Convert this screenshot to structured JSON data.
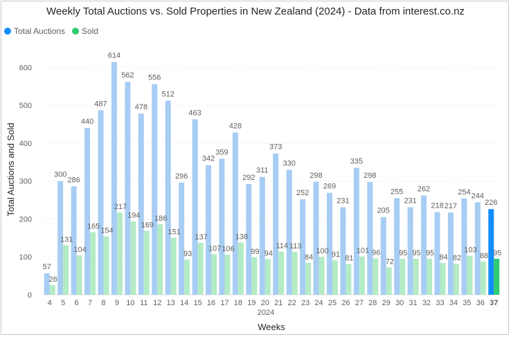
{
  "chart_data": {
    "type": "bar",
    "title": "Weekly Total Auctions vs. Sold Properties in New Zealand (2024) - Data from interest.co.nz",
    "xlabel": "Weeks",
    "x_group_label": "2024",
    "ylabel": "Total Auctions and Sold",
    "ylim": [
      0,
      650
    ],
    "yticks": [
      0,
      100,
      200,
      300,
      400,
      500,
      600
    ],
    "legend_position": "top-left",
    "grid": true,
    "categories": [
      "4",
      "5",
      "6",
      "7",
      "8",
      "9",
      "10",
      "11",
      "12",
      "13",
      "14",
      "15",
      "16",
      "17",
      "18",
      "19",
      "20",
      "21",
      "22",
      "23",
      "24",
      "25",
      "26",
      "27",
      "28",
      "29",
      "30",
      "31",
      "32",
      "33",
      "34",
      "35",
      "36",
      "37"
    ],
    "highlighted_category": "37",
    "series": [
      {
        "name": "Total Auctions",
        "color": "#a7cdf4",
        "highlight_color": "#118dff",
        "values": [
          57,
          300,
          286,
          440,
          487,
          614,
          562,
          478,
          556,
          512,
          296,
          463,
          342,
          359,
          428,
          292,
          311,
          373,
          330,
          252,
          298,
          269,
          231,
          335,
          298,
          205,
          255,
          231,
          262,
          218,
          217,
          254,
          244,
          226
        ]
      },
      {
        "name": "Sold",
        "color": "#b3ebc5",
        "highlight_color": "#2ecc71",
        "values": [
          26,
          131,
          104,
          165,
          154,
          217,
          194,
          169,
          186,
          151,
          93,
          137,
          107,
          106,
          138,
          99,
          94,
          114,
          113,
          84,
          100,
          91,
          81,
          101,
          96,
          72,
          95,
          95,
          95,
          84,
          82,
          103,
          88,
          95
        ]
      }
    ]
  }
}
